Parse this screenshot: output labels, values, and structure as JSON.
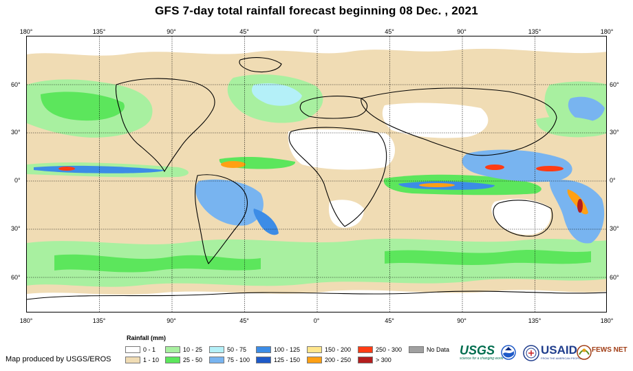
{
  "title": "GFS 7-day total rainfall forecast beginning 08 Dec. , 2021",
  "axes": {
    "lon_ticks_top": [
      "180°",
      "135°",
      "90°",
      "45°",
      "0°",
      "45°",
      "90°",
      "135°",
      "180°"
    ],
    "lon_ticks_bottom": [
      "180°",
      "135°",
      "90°",
      "45°",
      "0°",
      "45°",
      "90°",
      "135°",
      "180°"
    ],
    "lat_ticks_left": [
      "60°",
      "30°",
      "0°",
      "30°",
      "60°"
    ],
    "lat_ticks_right": [
      "60°",
      "30°",
      "0°",
      "30°",
      "60°"
    ]
  },
  "legend": {
    "title": "Rainfall (mm)",
    "classes": [
      {
        "label": "0 - 1",
        "color": "#ffffff"
      },
      {
        "label": "1 - 10",
        "color": "#f0dcb4"
      },
      {
        "label": "10 - 25",
        "color": "#a8f0a0"
      },
      {
        "label": "25 - 50",
        "color": "#5ce65c"
      },
      {
        "label": "50 - 75",
        "color": "#b4f0f8"
      },
      {
        "label": "75 - 100",
        "color": "#78b4f0"
      },
      {
        "label": "100 - 125",
        "color": "#3c8ce6"
      },
      {
        "label": "125 - 150",
        "color": "#1e5ac8"
      },
      {
        "label": "150 - 200",
        "color": "#ffe68c"
      },
      {
        "label": "200 - 250",
        "color": "#ffa014"
      },
      {
        "label": "250 - 300",
        "color": "#ff3c14"
      },
      {
        "label": "> 300",
        "color": "#b41e1e"
      },
      {
        "label": "No Data",
        "color": "#a0a0a0"
      }
    ]
  },
  "credit": "Map produced by USGS/EROS",
  "logos": {
    "usgs": "USGS",
    "usgs_tagline": "science for a changing world",
    "usaid": "USAID",
    "usaid_tagline": "FROM THE AMERICAN PEOPLE",
    "fewsnet": "FEWS NET"
  }
}
